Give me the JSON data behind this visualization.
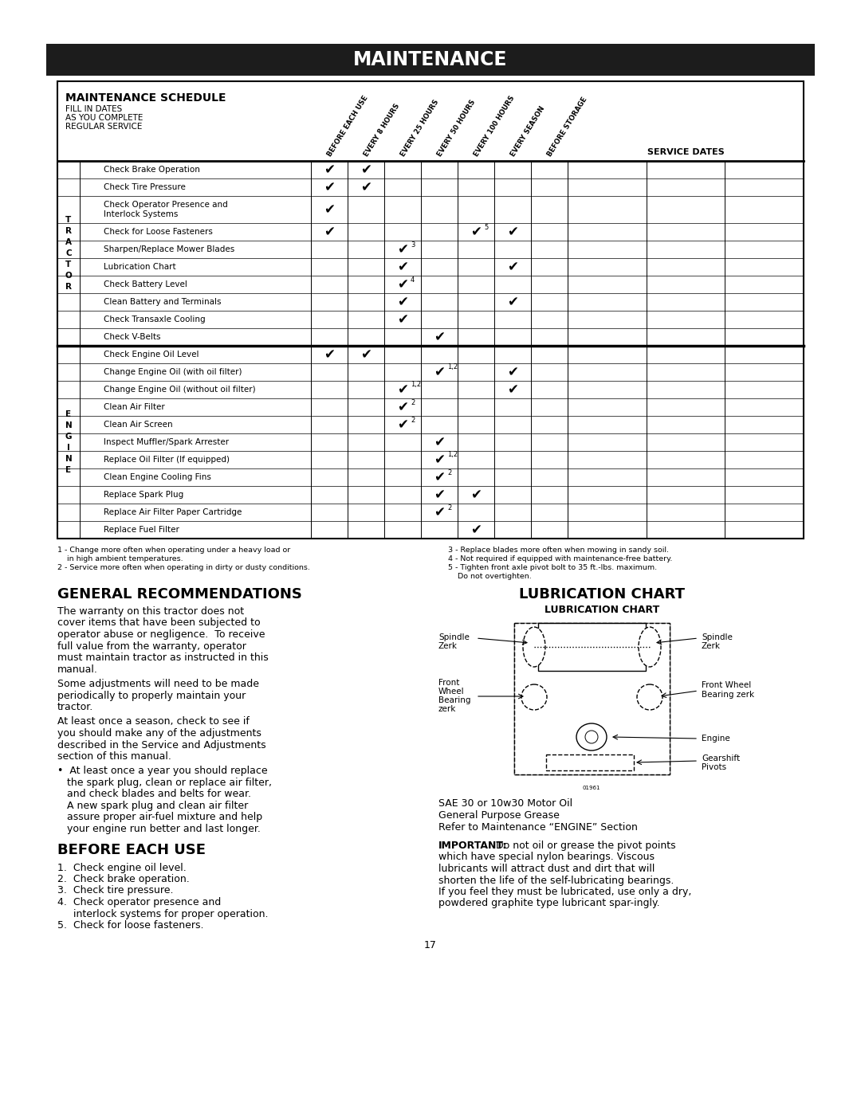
{
  "title": "MAINTENANCE",
  "table_title": "MAINTENANCE SCHEDULE",
  "table_sub1": "FILL IN DATES",
  "table_sub2": "AS YOU COMPLETE",
  "table_sub3": "REGULAR SERVICE",
  "col_headers": [
    "BEFORE EACH USE",
    "EVERY 8 HOURS",
    "EVERY 25 HOURS",
    "EVERY 50 HOURS",
    "EVERY 100 HOURS",
    "EVERY SEASON",
    "BEFORE STORAGE"
  ],
  "service_dates_label": "SERVICE DATES",
  "tractor_rows": [
    {
      "label": "Check Brake Operation",
      "two_line": false,
      "checks": [
        1,
        1,
        0,
        0,
        0,
        0,
        0
      ]
    },
    {
      "label": "Check Tire Pressure",
      "two_line": false,
      "checks": [
        1,
        1,
        0,
        0,
        0,
        0,
        0
      ]
    },
    {
      "label": "Check Operator Presence and\nInterlock Systems",
      "two_line": true,
      "checks": [
        1,
        0,
        0,
        0,
        0,
        0,
        0
      ]
    },
    {
      "label": "Check for Loose Fasteners",
      "two_line": false,
      "checks": [
        1,
        0,
        0,
        0,
        "5",
        1,
        0
      ]
    },
    {
      "label": "Sharpen/Replace Mower Blades",
      "two_line": false,
      "checks": [
        0,
        0,
        "3",
        0,
        0,
        0,
        0
      ]
    },
    {
      "label": "Lubrication Chart",
      "two_line": false,
      "checks": [
        0,
        0,
        1,
        0,
        0,
        1,
        0
      ]
    },
    {
      "label": "Check Battery Level",
      "two_line": false,
      "checks": [
        0,
        0,
        "4",
        0,
        0,
        0,
        0
      ]
    },
    {
      "label": "Clean Battery and Terminals",
      "two_line": false,
      "checks": [
        0,
        0,
        1,
        0,
        0,
        1,
        0
      ]
    },
    {
      "label": "Check Transaxle Cooling",
      "two_line": false,
      "checks": [
        0,
        0,
        1,
        0,
        0,
        0,
        0
      ]
    },
    {
      "label": "Check V-Belts",
      "two_line": false,
      "checks": [
        0,
        0,
        0,
        1,
        0,
        0,
        0
      ]
    }
  ],
  "engine_rows": [
    {
      "label": "Check Engine Oil Level",
      "two_line": false,
      "checks": [
        1,
        1,
        0,
        0,
        0,
        0,
        0
      ]
    },
    {
      "label": "Change Engine Oil (with oil filter)",
      "two_line": false,
      "checks": [
        0,
        0,
        0,
        "1,2",
        0,
        1,
        0
      ]
    },
    {
      "label": "Change Engine Oil (without oil filter)",
      "two_line": false,
      "checks": [
        0,
        0,
        "1,2",
        0,
        0,
        1,
        0
      ]
    },
    {
      "label": "Clean Air Filter",
      "two_line": false,
      "checks": [
        0,
        0,
        "2",
        0,
        0,
        0,
        0
      ]
    },
    {
      "label": "Clean Air Screen",
      "two_line": false,
      "checks": [
        0,
        0,
        "2",
        0,
        0,
        0,
        0
      ]
    },
    {
      "label": "Inspect Muffler/Spark Arrester",
      "two_line": false,
      "checks": [
        0,
        0,
        0,
        1,
        0,
        0,
        0
      ]
    },
    {
      "label": "Replace Oil Filter (If equipped)",
      "two_line": false,
      "checks": [
        0,
        0,
        0,
        "1,2",
        0,
        0,
        0
      ]
    },
    {
      "label": "Clean Engine Cooling Fins",
      "two_line": false,
      "checks": [
        0,
        0,
        0,
        "2",
        0,
        0,
        0
      ]
    },
    {
      "label": "Replace Spark Plug",
      "two_line": false,
      "checks": [
        0,
        0,
        0,
        1,
        1,
        0,
        0
      ]
    },
    {
      "label": "Replace Air Filter Paper Cartridge",
      "two_line": false,
      "checks": [
        0,
        0,
        0,
        "2",
        0,
        0,
        0
      ]
    },
    {
      "label": "Replace Fuel Filter",
      "two_line": false,
      "checks": [
        0,
        0,
        0,
        0,
        1,
        0,
        0
      ]
    }
  ],
  "footnotes_left": [
    "1 - Change more often when operating under a heavy load or",
    "    in high ambient temperatures.",
    "2 - Service more often when operating in dirty or dusty conditions."
  ],
  "footnotes_right": [
    "3 - Replace blades more often when mowing in sandy soil.",
    "4 - Not required if equipped with maintenance-free battery.",
    "5 - Tighten front axle pivot bolt to 35 ft.-lbs. maximum.",
    "    Do not overtighten."
  ],
  "gen_rec_title": "GENERAL RECOMMENDATIONS",
  "gen_rec_paragraphs": [
    "The warranty on this tractor does not\ncover items that have been subjected to\noperator abuse or negligence.  To receive\nfull value from the warranty, operator\nmust maintain tractor as instructed in this\nmanual.",
    "Some adjustments will need to be made\nperiodically to properly maintain your\ntractor.",
    "At least once a season, check to see if\nyou should make any of the adjustments\ndescribed in the Service and Adjustments\nsection of this manual.",
    "•  At least once a year you should replace\n   the spark plug, clean or replace air filter,\n   and check blades and belts for wear.\n   A new spark plug and clean air filter\n   assure proper air-fuel mixture and help\n   your engine run better and last longer."
  ],
  "before_each_use_title": "BEFORE EACH USE",
  "before_each_use_items": [
    "1.  Check engine oil level.",
    "2.  Check brake operation.",
    "3.  Check tire pressure.",
    "4.  Check operator presence and\n     interlock systems for proper operation.",
    "5.  Check for loose fasteners."
  ],
  "lub_title": "LUBRICATION CHART",
  "lub_subtitle": "LUBRICATION CHART",
  "lub_notes": [
    "SAE 30 or 10w30 Motor Oil",
    "General Purpose Grease",
    "Refer to Maintenance “ENGINE” Section"
  ],
  "important_bold": "IMPORTANT:",
  "important_body": "  Do not oil or grease the pivot points which have special nylon bearings.  Viscous lubricants will attract dust and dirt that will shorten the life of the self-lubricating bearings.  If you feel they must be lubricated, use only a dry, powdered graphite type lubricant spar-ingly.",
  "page_number": "17"
}
